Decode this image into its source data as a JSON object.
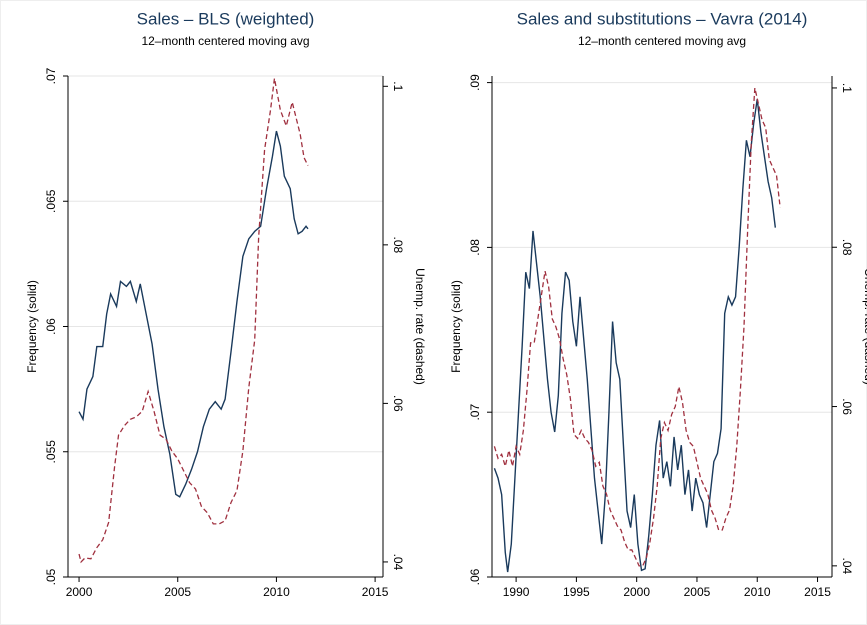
{
  "chart_data": [
    {
      "type": "line",
      "title": "Sales – BLS (weighted)",
      "subtitle": "12–month centered moving avg",
      "y_label": "Frequency (solid)",
      "y2_label": "Unemp. rate (dashed)",
      "grid": true,
      "xlim": [
        1999.44,
        2015.4
      ],
      "xticks": [
        2000,
        2005,
        2010,
        2015
      ],
      "ylim": [
        0.05,
        0.07
      ],
      "yticks": [
        {
          "value": 0.05,
          "label": ".05"
        },
        {
          "value": 0.055,
          "label": ".055"
        },
        {
          "value": 0.06,
          "label": ".06"
        },
        {
          "value": 0.065,
          "label": ".065"
        },
        {
          "value": 0.07,
          "label": ".07"
        }
      ],
      "y2lim": [
        0.0381,
        0.1013
      ],
      "y2ticks": [
        {
          "value": 0.04,
          "label": ".04"
        },
        {
          "value": 0.06,
          "label": ".06"
        },
        {
          "value": 0.08,
          "label": ".08"
        },
        {
          "value": 0.1,
          "label": ".1"
        }
      ],
      "series": [
        {
          "color": "#1a3a5c",
          "dashed": false,
          "x": [
            2000,
            2000.2,
            2000.4,
            2000.7,
            2000.9,
            2001.2,
            2001.4,
            2001.6,
            2001.9,
            2002.1,
            2002.4,
            2002.6,
            2002.9,
            2003.1,
            2003.4,
            2003.7,
            2004.0,
            2004.3,
            2004.6,
            2004.9,
            2005.1,
            2005.4,
            2005.7,
            2006.0,
            2006.3,
            2006.6,
            2006.9,
            2007.2,
            2007.4,
            2007.7,
            2008.0,
            2008.3,
            2008.6,
            2008.9,
            2009.2,
            2009.5,
            2009.8,
            2010.0,
            2010.2,
            2010.4,
            2010.7,
            2010.9,
            2011.1,
            2011.3,
            2011.5,
            2011.6
          ],
          "values": [
            0.0566,
            0.0563,
            0.0575,
            0.058,
            0.0592,
            0.0592,
            0.0605,
            0.0613,
            0.0608,
            0.0618,
            0.0616,
            0.0618,
            0.061,
            0.0617,
            0.0605,
            0.0593,
            0.0575,
            0.056,
            0.0549,
            0.0533,
            0.0532,
            0.0537,
            0.0543,
            0.055,
            0.056,
            0.0567,
            0.057,
            0.0567,
            0.0571,
            0.059,
            0.061,
            0.0628,
            0.0635,
            0.0638,
            0.064,
            0.0655,
            0.0668,
            0.0678,
            0.0672,
            0.066,
            0.0655,
            0.0643,
            0.0637,
            0.0638,
            0.064,
            0.0639
          ]
        },
        {
          "color": "#a0303f",
          "dashed": true,
          "axis": "y2",
          "x": [
            2000,
            2000.1,
            2000.3,
            2000.6,
            2000.9,
            2001.2,
            2001.5,
            2001.8,
            2002.0,
            2002.3,
            2002.6,
            2002.9,
            2003.2,
            2003.5,
            2003.8,
            2004.1,
            2004.4,
            2004.7,
            2005.0,
            2005.3,
            2005.6,
            2005.9,
            2006.2,
            2006.5,
            2006.8,
            2007.1,
            2007.4,
            2007.7,
            2008.0,
            2008.3,
            2008.6,
            2008.9,
            2009.1,
            2009.4,
            2009.7,
            2009.9,
            2010.2,
            2010.5,
            2010.8,
            2011.0,
            2011.2,
            2011.4,
            2011.6
          ],
          "values": [
            0.041,
            0.04,
            0.0405,
            0.0404,
            0.0418,
            0.0428,
            0.045,
            0.052,
            0.056,
            0.0572,
            0.058,
            0.0583,
            0.059,
            0.0615,
            0.059,
            0.056,
            0.0555,
            0.054,
            0.053,
            0.0515,
            0.05,
            0.0492,
            0.047,
            0.0462,
            0.0448,
            0.0448,
            0.0452,
            0.0475,
            0.049,
            0.054,
            0.062,
            0.068,
            0.081,
            0.092,
            0.097,
            0.101,
            0.097,
            0.095,
            0.098,
            0.096,
            0.094,
            0.091,
            0.09
          ]
        }
      ]
    },
    {
      "type": "line",
      "title": "Sales and substitutions – Vavra (2014)",
      "subtitle": "12–month centered moving avg",
      "y_label": "Frequency (solid)",
      "y2_label": "Unemp. rate (dashed)",
      "grid": true,
      "xlim": [
        1988.0,
        2016.2
      ],
      "xticks": [
        1990,
        1995,
        2000,
        2005,
        2010,
        2015
      ],
      "ylim": [
        0.06,
        0.0904
      ],
      "yticks": [
        {
          "value": 0.06,
          "label": ".06"
        },
        {
          "value": 0.07,
          "label": ".07"
        },
        {
          "value": 0.08,
          "label": ".08"
        },
        {
          "value": 0.09,
          "label": ".09"
        }
      ],
      "y2lim": [
        0.0386,
        0.1015
      ],
      "y2ticks": [
        {
          "value": 0.04,
          "label": ".04"
        },
        {
          "value": 0.06,
          "label": ".06"
        },
        {
          "value": 0.08,
          "label": ".08"
        },
        {
          "value": 0.1,
          "label": ".1"
        }
      ],
      "series": [
        {
          "color": "#1a3a5c",
          "dashed": false,
          "x": [
            1988.2,
            1988.5,
            1988.8,
            1989.1,
            1989.3,
            1989.6,
            1989.9,
            1990.2,
            1990.5,
            1990.8,
            1991.1,
            1991.4,
            1991.7,
            1992.0,
            1992.3,
            1992.6,
            1992.9,
            1993.2,
            1993.5,
            1993.8,
            1994.1,
            1994.4,
            1994.7,
            1995.0,
            1995.3,
            1995.6,
            1995.9,
            1996.2,
            1996.5,
            1996.8,
            1997.1,
            1997.4,
            1997.7,
            1998.0,
            1998.3,
            1998.6,
            1998.9,
            1999.2,
            1999.5,
            1999.8,
            2000.1,
            2000.4,
            2000.7,
            2001.0,
            2001.3,
            2001.6,
            2001.9,
            2002.2,
            2002.5,
            2002.8,
            2003.1,
            2003.4,
            2003.7,
            2004.0,
            2004.3,
            2004.6,
            2004.9,
            2005.2,
            2005.5,
            2005.8,
            2006.1,
            2006.4,
            2006.7,
            2007.0,
            2007.3,
            2007.6,
            2007.9,
            2008.2,
            2008.5,
            2008.8,
            2009.1,
            2009.4,
            2009.7,
            2010.0,
            2010.3,
            2010.6,
            2010.9,
            2011.2,
            2011.5
          ],
          "values": [
            0.0666,
            0.066,
            0.065,
            0.0615,
            0.0603,
            0.062,
            0.066,
            0.07,
            0.074,
            0.0785,
            0.0775,
            0.081,
            0.079,
            0.077,
            0.0745,
            0.072,
            0.07,
            0.0688,
            0.071,
            0.076,
            0.0785,
            0.078,
            0.0755,
            0.074,
            0.077,
            0.0745,
            0.072,
            0.069,
            0.066,
            0.064,
            0.062,
            0.065,
            0.07,
            0.0755,
            0.073,
            0.072,
            0.068,
            0.064,
            0.063,
            0.065,
            0.062,
            0.0604,
            0.0605,
            0.0625,
            0.065,
            0.068,
            0.0695,
            0.066,
            0.067,
            0.0655,
            0.0685,
            0.0665,
            0.068,
            0.065,
            0.0665,
            0.064,
            0.066,
            0.065,
            0.0645,
            0.063,
            0.065,
            0.067,
            0.0675,
            0.069,
            0.076,
            0.077,
            0.0765,
            0.077,
            0.08,
            0.0835,
            0.0865,
            0.0855,
            0.0875,
            0.089,
            0.087,
            0.0855,
            0.084,
            0.083,
            0.0812
          ]
        },
        {
          "color": "#a0303f",
          "dashed": true,
          "axis": "y2",
          "x": [
            1988.2,
            1988.5,
            1988.8,
            1989.1,
            1989.4,
            1989.7,
            1990.0,
            1990.3,
            1990.6,
            1990.9,
            1991.2,
            1991.5,
            1991.8,
            1992.1,
            1992.4,
            1992.7,
            1993.0,
            1993.3,
            1993.6,
            1993.9,
            1994.2,
            1994.5,
            1994.8,
            1995.1,
            1995.4,
            1995.7,
            1996.0,
            1996.3,
            1996.6,
            1996.9,
            1997.2,
            1997.5,
            1997.8,
            1998.1,
            1998.4,
            1998.7,
            1999.0,
            1999.3,
            1999.6,
            1999.9,
            2000.2,
            2000.5,
            2000.8,
            2001.1,
            2001.4,
            2001.7,
            2002.0,
            2002.3,
            2002.6,
            2002.9,
            2003.2,
            2003.5,
            2003.8,
            2004.1,
            2004.4,
            2004.7,
            2005.0,
            2005.3,
            2005.6,
            2005.9,
            2006.2,
            2006.5,
            2006.8,
            2007.1,
            2007.4,
            2007.7,
            2008.0,
            2008.3,
            2008.6,
            2008.9,
            2009.2,
            2009.5,
            2009.8,
            2010.1,
            2010.4,
            2010.7,
            2011.0,
            2011.3,
            2011.6,
            2011.9
          ],
          "values": [
            0.055,
            0.0535,
            0.054,
            0.0525,
            0.0545,
            0.0525,
            0.055,
            0.054,
            0.057,
            0.062,
            0.068,
            0.068,
            0.071,
            0.074,
            0.077,
            0.075,
            0.071,
            0.07,
            0.0685,
            0.066,
            0.064,
            0.061,
            0.0565,
            0.056,
            0.057,
            0.056,
            0.0555,
            0.0545,
            0.0525,
            0.053,
            0.05,
            0.049,
            0.047,
            0.046,
            0.045,
            0.0445,
            0.043,
            0.042,
            0.042,
            0.041,
            0.04,
            0.04,
            0.041,
            0.043,
            0.046,
            0.05,
            0.056,
            0.058,
            0.057,
            0.059,
            0.06,
            0.0625,
            0.0605,
            0.057,
            0.0555,
            0.055,
            0.053,
            0.051,
            0.05,
            0.049,
            0.047,
            0.046,
            0.0445,
            0.0445,
            0.046,
            0.047,
            0.05,
            0.055,
            0.062,
            0.07,
            0.082,
            0.093,
            0.1,
            0.098,
            0.096,
            0.095,
            0.091,
            0.09,
            0.089,
            0.085
          ]
        }
      ]
    }
  ]
}
